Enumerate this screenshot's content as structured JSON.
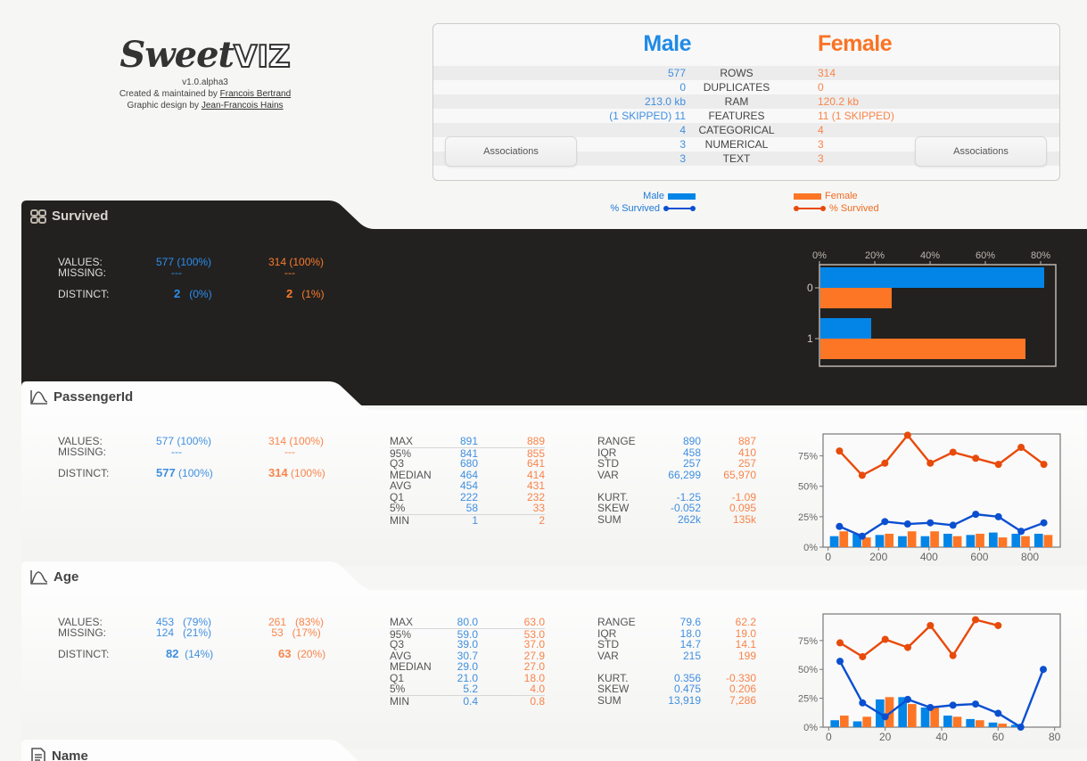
{
  "logo": {
    "name_script": "Sweet",
    "name_block": "VIZ",
    "version": "v1.0.alpha3",
    "created_prefix": "Created & maintained by ",
    "created_author": "Francois Bertrand",
    "design_prefix": "Graphic design by ",
    "design_author": "Jean-Francois Hains"
  },
  "summary": {
    "male_title": "Male",
    "female_title": "Female",
    "rows": [
      {
        "label": "ROWS",
        "male": "577",
        "female": "314"
      },
      {
        "label": "DUPLICATES",
        "male": "0",
        "female": "0"
      },
      {
        "label": "RAM",
        "male": "213.0 kb",
        "female": "120.2 kb"
      },
      {
        "label": "FEATURES",
        "male": "(1 SKIPPED) 11",
        "female": "11 (1 SKIPPED)"
      },
      {
        "label": "CATEGORICAL",
        "male": "4",
        "female": "4"
      },
      {
        "label": "NUMERICAL",
        "male": "3",
        "female": "3"
      },
      {
        "label": "TEXT",
        "male": "3",
        "female": "3"
      }
    ],
    "associations_left": "Associations",
    "associations_right": "Associations"
  },
  "legend": {
    "male": "Male",
    "male_line": "% Survived",
    "female": "Female",
    "female_line": "% Survived"
  },
  "colors": {
    "male": "#0385e8",
    "female": "#fd7625",
    "male_line": "#0a4fd0",
    "female_line": "#e84a0a",
    "dark_bg": "#222120"
  },
  "features": [
    {
      "name": "Survived",
      "icon": "categorical-grid-icon",
      "values": {
        "label": "VALUES:",
        "male": "577 (100%)",
        "female": "314 (100%)"
      },
      "missing": {
        "label": "MISSING:",
        "male": "---",
        "female": "---"
      },
      "distinct": {
        "label": "DISTINCT:",
        "male_n": "2",
        "male_pct": "(0%)",
        "female_n": "2",
        "female_pct": "(1%)"
      }
    },
    {
      "name": "PassengerId",
      "icon": "numeric-curve-icon",
      "values": {
        "label": "VALUES:",
        "male": "577 (100%)",
        "female": "314 (100%)"
      },
      "missing": {
        "label": "MISSING:",
        "male": "---",
        "female": "---"
      },
      "distinct": {
        "label": "DISTINCT:",
        "male_n": "577",
        "male_pct": "(100%)",
        "female_n": "314",
        "female_pct": "(100%)"
      },
      "quantiles": [
        {
          "k": "MAX",
          "m": "891",
          "f": "889"
        },
        {
          "k": "95%",
          "m": "841",
          "f": "855"
        },
        {
          "k": "Q3",
          "m": "680",
          "f": "641"
        },
        {
          "k": "MEDIAN",
          "m": "464",
          "f": "414"
        },
        {
          "k": "AVG",
          "m": "454",
          "f": "431"
        },
        {
          "k": "Q1",
          "m": "222",
          "f": "232"
        },
        {
          "k": "5%",
          "m": "58",
          "f": "33"
        },
        {
          "k": "MIN",
          "m": "1",
          "f": "2"
        }
      ],
      "moments": [
        {
          "k": "RANGE",
          "m": "890",
          "f": "887"
        },
        {
          "k": "IQR",
          "m": "458",
          "f": "410"
        },
        {
          "k": "STD",
          "m": "257",
          "f": "257"
        },
        {
          "k": "VAR",
          "m": "66,299",
          "f": "65,970"
        },
        {
          "k": "",
          "m": "",
          "f": ""
        },
        {
          "k": "KURT.",
          "m": "-1.25",
          "f": "-1.09"
        },
        {
          "k": "SKEW",
          "m": "-0.052",
          "f": "0.095"
        },
        {
          "k": "SUM",
          "m": "262k",
          "f": "135k"
        }
      ]
    },
    {
      "name": "Age",
      "icon": "numeric-curve-icon",
      "values": {
        "label": "VALUES:",
        "male": "453   (79%)",
        "female": "261   (83%)"
      },
      "missing": {
        "label": "MISSING:",
        "male": "124   (21%)",
        "female": " 53   (17%)"
      },
      "distinct": {
        "label": "DISTINCT:",
        "male_n": "82",
        "male_pct": "(14%)",
        "female_n": "63",
        "female_pct": "(20%)"
      },
      "quantiles": [
        {
          "k": "MAX",
          "m": "80.0",
          "f": "63.0"
        },
        {
          "k": "95%",
          "m": "59.0",
          "f": "53.0"
        },
        {
          "k": "Q3",
          "m": "39.0",
          "f": "37.0"
        },
        {
          "k": "AVG",
          "m": "30.7",
          "f": "27.9"
        },
        {
          "k": "MEDIAN",
          "m": "29.0",
          "f": "27.0"
        },
        {
          "k": "Q1",
          "m": "21.0",
          "f": "18.0"
        },
        {
          "k": "5%",
          "m": "5.2",
          "f": "4.0"
        },
        {
          "k": "MIN",
          "m": "0.4",
          "f": "0.8"
        }
      ],
      "moments": [
        {
          "k": "RANGE",
          "m": "79.6",
          "f": "62.2"
        },
        {
          "k": "IQR",
          "m": "18.0",
          "f": "19.0"
        },
        {
          "k": "STD",
          "m": "14.7",
          "f": "14.1"
        },
        {
          "k": "VAR",
          "m": "215",
          "f": "199"
        },
        {
          "k": "",
          "m": "",
          "f": ""
        },
        {
          "k": "KURT.",
          "m": "0.356",
          "f": "-0.330"
        },
        {
          "k": "SKEW",
          "m": "0.475",
          "f": "0.206"
        },
        {
          "k": "SUM",
          "m": "13,919",
          "f": "7,286"
        }
      ]
    },
    {
      "name": "Name",
      "icon": "text-doc-icon"
    }
  ],
  "chart_data": [
    {
      "type": "bar",
      "orientation": "horizontal",
      "title": "Survived",
      "categories": [
        "0",
        "1"
      ],
      "series": [
        {
          "name": "Male",
          "values": [
            81,
            19
          ]
        },
        {
          "name": "Female",
          "values": [
            26,
            74
          ]
        }
      ],
      "xlabel": "",
      "ylabel": "",
      "xticks": [
        "0%",
        "20%",
        "40%",
        "60%",
        "80%"
      ],
      "xlim": [
        0,
        85
      ]
    },
    {
      "type": "bar+line",
      "title": "PassengerId",
      "x": [
        45,
        135,
        225,
        315,
        405,
        495,
        585,
        675,
        765,
        855
      ],
      "xticks": [
        "0",
        "200",
        "400",
        "600",
        "800"
      ],
      "yticks": [
        "0%",
        "25%",
        "50%",
        "75%"
      ],
      "xlim": [
        -20,
        920
      ],
      "ylim": [
        0,
        93
      ],
      "series": [
        {
          "name": "Male",
          "kind": "bar",
          "values": [
            9,
            11,
            10,
            9,
            9,
            11,
            10,
            12,
            11,
            11
          ]
        },
        {
          "name": "Female",
          "kind": "bar",
          "values": [
            13,
            8,
            11,
            13,
            13,
            9,
            11,
            8,
            9,
            10
          ]
        },
        {
          "name": "Male % Survived",
          "kind": "line",
          "values": [
            17,
            9,
            21,
            19,
            20,
            18,
            27,
            25,
            13,
            20
          ]
        },
        {
          "name": "Female % Survived",
          "kind": "line",
          "values": [
            79,
            59,
            69,
            92,
            69,
            78,
            73,
            68,
            82,
            68
          ]
        }
      ]
    },
    {
      "type": "bar+line",
      "title": "Age",
      "x": [
        4,
        12,
        20,
        28,
        36,
        44,
        52,
        60,
        68,
        76
      ],
      "xticks": [
        "0",
        "20",
        "40",
        "60",
        "80"
      ],
      "yticks": [
        "0%",
        "25%",
        "50%",
        "75%"
      ],
      "xlim": [
        -2,
        82
      ],
      "ylim": [
        0,
        98
      ],
      "series": [
        {
          "name": "Male",
          "kind": "bar",
          "values": [
            6,
            5,
            24,
            26,
            17,
            10,
            7,
            4,
            2,
            0
          ]
        },
        {
          "name": "Female",
          "kind": "bar",
          "values": [
            10,
            9,
            26,
            20,
            17,
            9,
            6,
            3,
            0,
            0
          ]
        },
        {
          "name": "Male % Survived",
          "kind": "line",
          "values": [
            57,
            21,
            9,
            24,
            17,
            19,
            20,
            12,
            0,
            50
          ]
        },
        {
          "name": "Female % Survived",
          "kind": "line",
          "values": [
            73,
            61,
            76,
            69,
            88,
            62,
            93,
            88,
            null,
            null
          ]
        }
      ]
    }
  ]
}
